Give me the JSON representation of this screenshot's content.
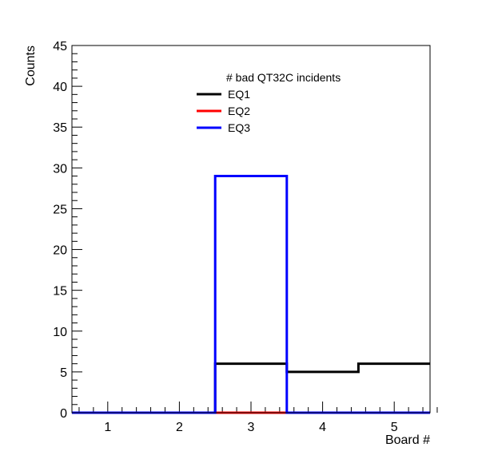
{
  "chart_data": {
    "type": "line",
    "title": "",
    "legend_header": "# bad QT32C incidents",
    "legend_position": "top-center",
    "xlabel": "Board #",
    "ylabel": "Counts",
    "xlim": [
      0.5,
      5.5
    ],
    "ylim": [
      0,
      45
    ],
    "x_ticks": [
      1,
      2,
      3,
      4,
      5
    ],
    "y_ticks": [
      0,
      5,
      10,
      15,
      20,
      25,
      30,
      35,
      40,
      45
    ],
    "grid": false,
    "categories": [
      1,
      2,
      3,
      4,
      5
    ],
    "series": [
      {
        "name": "EQ1",
        "color": "#000000",
        "values": [
          0,
          0,
          6,
          5,
          6
        ]
      },
      {
        "name": "EQ2",
        "color": "#ff0000",
        "values": [
          0,
          0,
          0,
          0,
          0
        ]
      },
      {
        "name": "EQ3",
        "color": "#0000ff",
        "values": [
          0,
          0,
          29,
          0,
          0
        ]
      }
    ]
  }
}
